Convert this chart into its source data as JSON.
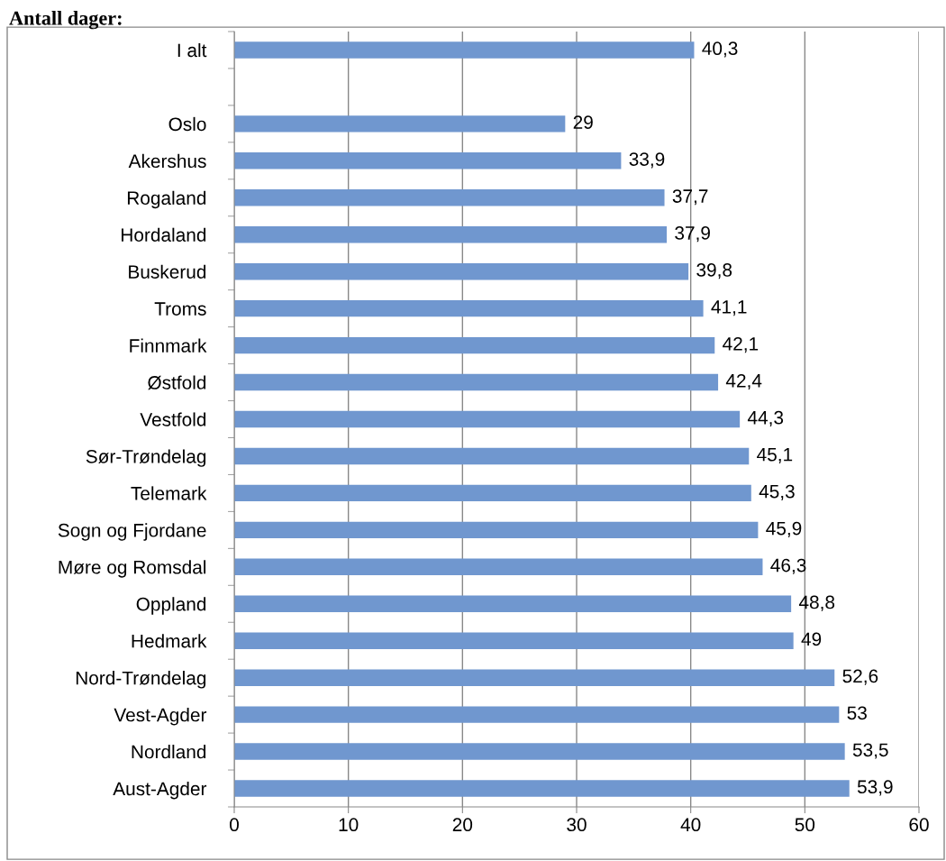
{
  "chart_data": {
    "type": "bar",
    "orientation": "horizontal",
    "title": "Antall dager:",
    "categories": [
      "I alt",
      null,
      "Oslo",
      "Akershus",
      "Rogaland",
      "Hordaland",
      "Buskerud",
      "Troms",
      "Finnmark",
      "Østfold",
      "Vestfold",
      "Sør-Trøndelag",
      "Telemark",
      "Sogn og Fjordane",
      "Møre og Romsdal",
      "Oppland",
      "Hedmark",
      "Nord-Trøndelag",
      "Vest-Agder",
      "Nordland",
      "Aust-Agder"
    ],
    "values": [
      40.3,
      null,
      29,
      33.9,
      37.7,
      37.9,
      39.8,
      41.1,
      42.1,
      42.4,
      44.3,
      45.1,
      45.3,
      45.9,
      46.3,
      48.8,
      49,
      52.6,
      53,
      53.5,
      53.9
    ],
    "value_labels": [
      "40,3",
      null,
      "29",
      "33,9",
      "37,7",
      "37,9",
      "39,8",
      "41,1",
      "42,1",
      "42,4",
      "44,3",
      "45,1",
      "45,3",
      "45,9",
      "46,3",
      "48,8",
      "49",
      "52,6",
      "53",
      "53,5",
      "53,9"
    ],
    "color": "#7097cf",
    "xlim": [
      0,
      60
    ],
    "xticks": [
      0,
      10,
      20,
      30,
      40,
      50,
      60
    ],
    "grid": "x",
    "legend": false
  }
}
